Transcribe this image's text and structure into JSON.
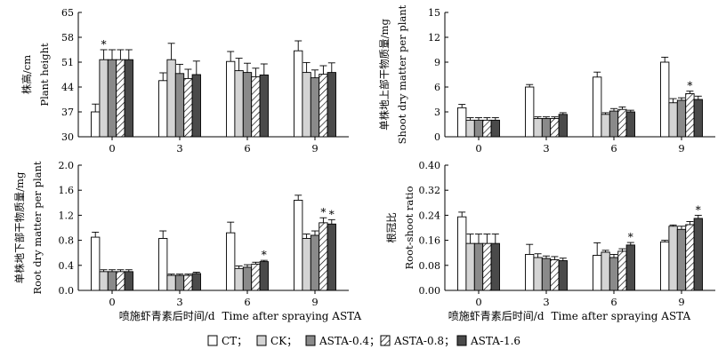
{
  "figure": {
    "x_axis_label_zh": "喷施虾青素后时间/d",
    "x_axis_label_en": "Time after spraying ASTA"
  },
  "legend": {
    "items": [
      {
        "label": "CT；",
        "fill": "white"
      },
      {
        "label": "CK；",
        "fill": "light"
      },
      {
        "label": "ASTA-0.4；",
        "fill": "mid"
      },
      {
        "label": "ASTA-0.8；",
        "fill": "hatch"
      },
      {
        "label": "ASTA-1.6",
        "fill": "dark"
      }
    ]
  },
  "colors": {
    "light": "#d4d4d4",
    "mid": "#8a8a8a",
    "dark": "#4a4a4a",
    "stroke": "#000000"
  },
  "chart_data": [
    {
      "type": "bar",
      "id": "plant-height",
      "ylabel_zh": "株高/cm",
      "ylabel_en": "Plant height",
      "categories": [
        "0",
        "3",
        "6",
        "9"
      ],
      "ylim": [
        30,
        65
      ],
      "yticks": [
        30,
        37,
        44,
        51,
        58,
        65
      ],
      "tick_decimals": 0,
      "series": [
        {
          "name": "CT",
          "values": [
            37,
            45.8,
            51.2,
            54.2
          ],
          "errors": [
            2.2,
            2.2,
            2.8,
            2.8
          ]
        },
        {
          "name": "CK",
          "values": [
            51.7,
            51.7,
            48.6,
            48.1
          ],
          "errors": [
            2.8,
            4.6,
            3.5,
            2.8
          ]
        },
        {
          "name": "ASTA-0.4",
          "values": [
            51.7,
            47.8,
            48.1,
            46.6
          ],
          "errors": [
            2.8,
            2.6,
            2.6,
            2.2
          ]
        },
        {
          "name": "ASTA-0.8",
          "values": [
            51.7,
            46.4,
            46.9,
            47.6
          ],
          "errors": [
            2.8,
            2.6,
            2.4,
            2.4
          ]
        },
        {
          "name": "ASTA-1.6",
          "values": [
            51.7,
            47.5,
            47.4,
            48.1
          ],
          "errors": [
            2.8,
            3.8,
            3.1,
            2.7
          ]
        }
      ],
      "annotations": [
        {
          "text": "*",
          "category": "0",
          "series": "CK"
        }
      ]
    },
    {
      "type": "bar",
      "id": "shoot-dry-matter",
      "ylabel_zh": "单株地上部干物质量/mg",
      "ylabel_en": "Shoot dry matter per plant",
      "categories": [
        "0",
        "3",
        "6",
        "9"
      ],
      "ylim": [
        0,
        15
      ],
      "yticks": [
        0,
        3,
        6,
        9,
        12,
        15
      ],
      "tick_decimals": 0,
      "series": [
        {
          "name": "CT",
          "values": [
            3.5,
            6.0,
            7.2,
            9.0
          ],
          "errors": [
            0.4,
            0.3,
            0.6,
            0.6
          ]
        },
        {
          "name": "CK",
          "values": [
            2.0,
            2.2,
            2.7,
            4.1
          ],
          "errors": [
            0.3,
            0.2,
            0.2,
            0.5
          ]
        },
        {
          "name": "ASTA-0.4",
          "values": [
            2.0,
            2.2,
            3.1,
            4.4
          ],
          "errors": [
            0.3,
            0.2,
            0.3,
            0.3
          ]
        },
        {
          "name": "ASTA-0.8",
          "values": [
            2.0,
            2.2,
            3.3,
            5.2
          ],
          "errors": [
            0.3,
            0.2,
            0.3,
            0.3
          ]
        },
        {
          "name": "ASTA-1.6",
          "values": [
            2.0,
            2.7,
            3.0,
            4.5
          ],
          "errors": [
            0.3,
            0.2,
            0.2,
            0.4
          ]
        }
      ],
      "annotations": [
        {
          "text": "*",
          "category": "9",
          "series": "ASTA-0.8"
        }
      ]
    },
    {
      "type": "bar",
      "id": "root-dry-matter",
      "ylabel_zh": "单株地下部干物质量/mg",
      "ylabel_en": "Root dry matter per plant",
      "categories": [
        "0",
        "3",
        "6",
        "9"
      ],
      "ylim": [
        0,
        2.0
      ],
      "yticks": [
        0,
        0.4,
        0.8,
        1.2,
        1.6,
        2.0
      ],
      "tick_decimals": 1,
      "series": [
        {
          "name": "CT",
          "values": [
            0.85,
            0.83,
            0.92,
            1.44
          ],
          "errors": [
            0.08,
            0.12,
            0.17,
            0.08
          ]
        },
        {
          "name": "CK",
          "values": [
            0.3,
            0.24,
            0.35,
            0.83
          ],
          "errors": [
            0.03,
            0.02,
            0.04,
            0.07
          ]
        },
        {
          "name": "ASTA-0.4",
          "values": [
            0.3,
            0.24,
            0.37,
            0.88
          ],
          "errors": [
            0.03,
            0.02,
            0.04,
            0.07
          ]
        },
        {
          "name": "ASTA-0.8",
          "values": [
            0.3,
            0.24,
            0.42,
            1.08
          ],
          "errors": [
            0.03,
            0.02,
            0.03,
            0.08
          ]
        },
        {
          "name": "ASTA-1.6",
          "values": [
            0.3,
            0.27,
            0.46,
            1.06
          ],
          "errors": [
            0.03,
            0.02,
            0.02,
            0.07
          ]
        }
      ],
      "annotations": [
        {
          "text": "*",
          "category": "6",
          "series": "ASTA-1.6"
        },
        {
          "text": "*",
          "category": "9",
          "series": "ASTA-0.8"
        },
        {
          "text": "*",
          "category": "9",
          "series": "ASTA-1.6"
        }
      ]
    },
    {
      "type": "bar",
      "id": "root-shoot-ratio",
      "ylabel_zh": "根冠比",
      "ylabel_en": "Root-shoot ratio",
      "categories": [
        "0",
        "3",
        "6",
        "9"
      ],
      "ylim": [
        0,
        0.4
      ],
      "yticks": [
        0,
        0.08,
        0.16,
        0.24,
        0.32,
        0.4
      ],
      "tick_decimals": 2,
      "series": [
        {
          "name": "CT",
          "values": [
            0.235,
            0.115,
            0.112,
            0.155
          ],
          "errors": [
            0.015,
            0.032,
            0.04,
            0.005
          ]
        },
        {
          "name": "CK",
          "values": [
            0.15,
            0.105,
            0.122,
            0.205
          ],
          "errors": [
            0.03,
            0.012,
            0.006,
            0.004
          ]
        },
        {
          "name": "ASTA-0.4",
          "values": [
            0.15,
            0.102,
            0.105,
            0.195
          ],
          "errors": [
            0.03,
            0.008,
            0.01,
            0.01
          ]
        },
        {
          "name": "ASTA-0.8",
          "values": [
            0.15,
            0.098,
            0.125,
            0.21
          ],
          "errors": [
            0.03,
            0.01,
            0.008,
            0.01
          ]
        },
        {
          "name": "ASTA-1.6",
          "values": [
            0.15,
            0.095,
            0.145,
            0.23
          ],
          "errors": [
            0.03,
            0.008,
            0.008,
            0.01
          ]
        }
      ],
      "annotations": [
        {
          "text": "*",
          "category": "6",
          "series": "ASTA-1.6"
        },
        {
          "text": "*",
          "category": "9",
          "series": "ASTA-1.6"
        }
      ]
    }
  ]
}
